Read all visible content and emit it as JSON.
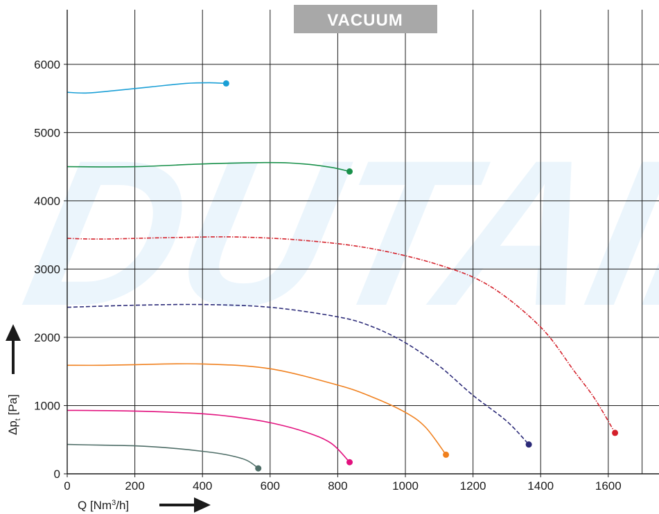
{
  "chart_data": {
    "type": "line",
    "mode_label": "VACUUM",
    "watermark": "DUTAIR",
    "xlabel": {
      "main": "Q [Nm",
      "sup": "3",
      "tail": "/h]"
    },
    "ylabel": {
      "main": "Δp",
      "sub": "t",
      "tail": " [Pa]"
    },
    "xlim": [
      0,
      1750
    ],
    "ylim": [
      0,
      6800
    ],
    "xticks": [
      0,
      200,
      400,
      600,
      800,
      1000,
      1200,
      1400,
      1600
    ],
    "yticks": [
      0,
      1000,
      2000,
      3000,
      4000,
      5000,
      6000
    ],
    "x_tick_labels": [
      "0",
      "200",
      "400",
      "600",
      "800",
      "1000",
      "1200",
      "1400",
      "1600"
    ],
    "y_tick_labels": [
      "0",
      "1000",
      "2000",
      "3000",
      "4000",
      "5000",
      "6000"
    ],
    "grid": true,
    "series": [
      {
        "color": "#1a9fd6",
        "dash": "solid",
        "points": [
          [
            0,
            5590
          ],
          [
            60,
            5580
          ],
          [
            150,
            5620
          ],
          [
            250,
            5670
          ],
          [
            350,
            5720
          ],
          [
            420,
            5730
          ],
          [
            470,
            5720
          ]
        ]
      },
      {
        "color": "#18904a",
        "dash": "solid",
        "points": [
          [
            0,
            4500
          ],
          [
            200,
            4500
          ],
          [
            400,
            4540
          ],
          [
            600,
            4560
          ],
          [
            700,
            4540
          ],
          [
            780,
            4490
          ],
          [
            835,
            4430
          ]
        ]
      },
      {
        "color": "#d4202a",
        "dash": "dashdot",
        "points": [
          [
            0,
            3450
          ],
          [
            100,
            3440
          ],
          [
            300,
            3460
          ],
          [
            500,
            3470
          ],
          [
            700,
            3420
          ],
          [
            900,
            3300
          ],
          [
            1100,
            3060
          ],
          [
            1250,
            2750
          ],
          [
            1400,
            2150
          ],
          [
            1500,
            1500
          ],
          [
            1560,
            1100
          ],
          [
            1620,
            600
          ]
        ]
      },
      {
        "color": "#2b2a78",
        "dash": "dashed",
        "points": [
          [
            0,
            2440
          ],
          [
            200,
            2470
          ],
          [
            400,
            2480
          ],
          [
            600,
            2440
          ],
          [
            800,
            2300
          ],
          [
            900,
            2160
          ],
          [
            1000,
            1920
          ],
          [
            1100,
            1580
          ],
          [
            1200,
            1150
          ],
          [
            1300,
            770
          ],
          [
            1365,
            430
          ]
        ]
      },
      {
        "color": "#f0801e",
        "dash": "solid",
        "points": [
          [
            0,
            1590
          ],
          [
            100,
            1590
          ],
          [
            200,
            1600
          ],
          [
            400,
            1610
          ],
          [
            600,
            1540
          ],
          [
            800,
            1300
          ],
          [
            900,
            1130
          ],
          [
            1000,
            900
          ],
          [
            1060,
            680
          ],
          [
            1120,
            280
          ]
        ]
      },
      {
        "color": "#e2117e",
        "dash": "solid",
        "points": [
          [
            0,
            930
          ],
          [
            200,
            920
          ],
          [
            400,
            880
          ],
          [
            500,
            830
          ],
          [
            600,
            750
          ],
          [
            700,
            620
          ],
          [
            780,
            450
          ],
          [
            835,
            170
          ]
        ]
      },
      {
        "color": "#4f6e68",
        "dash": "solid",
        "points": [
          [
            0,
            430
          ],
          [
            100,
            420
          ],
          [
            200,
            410
          ],
          [
            300,
            380
          ],
          [
            400,
            330
          ],
          [
            470,
            280
          ],
          [
            530,
            200
          ],
          [
            565,
            80
          ]
        ]
      }
    ]
  }
}
